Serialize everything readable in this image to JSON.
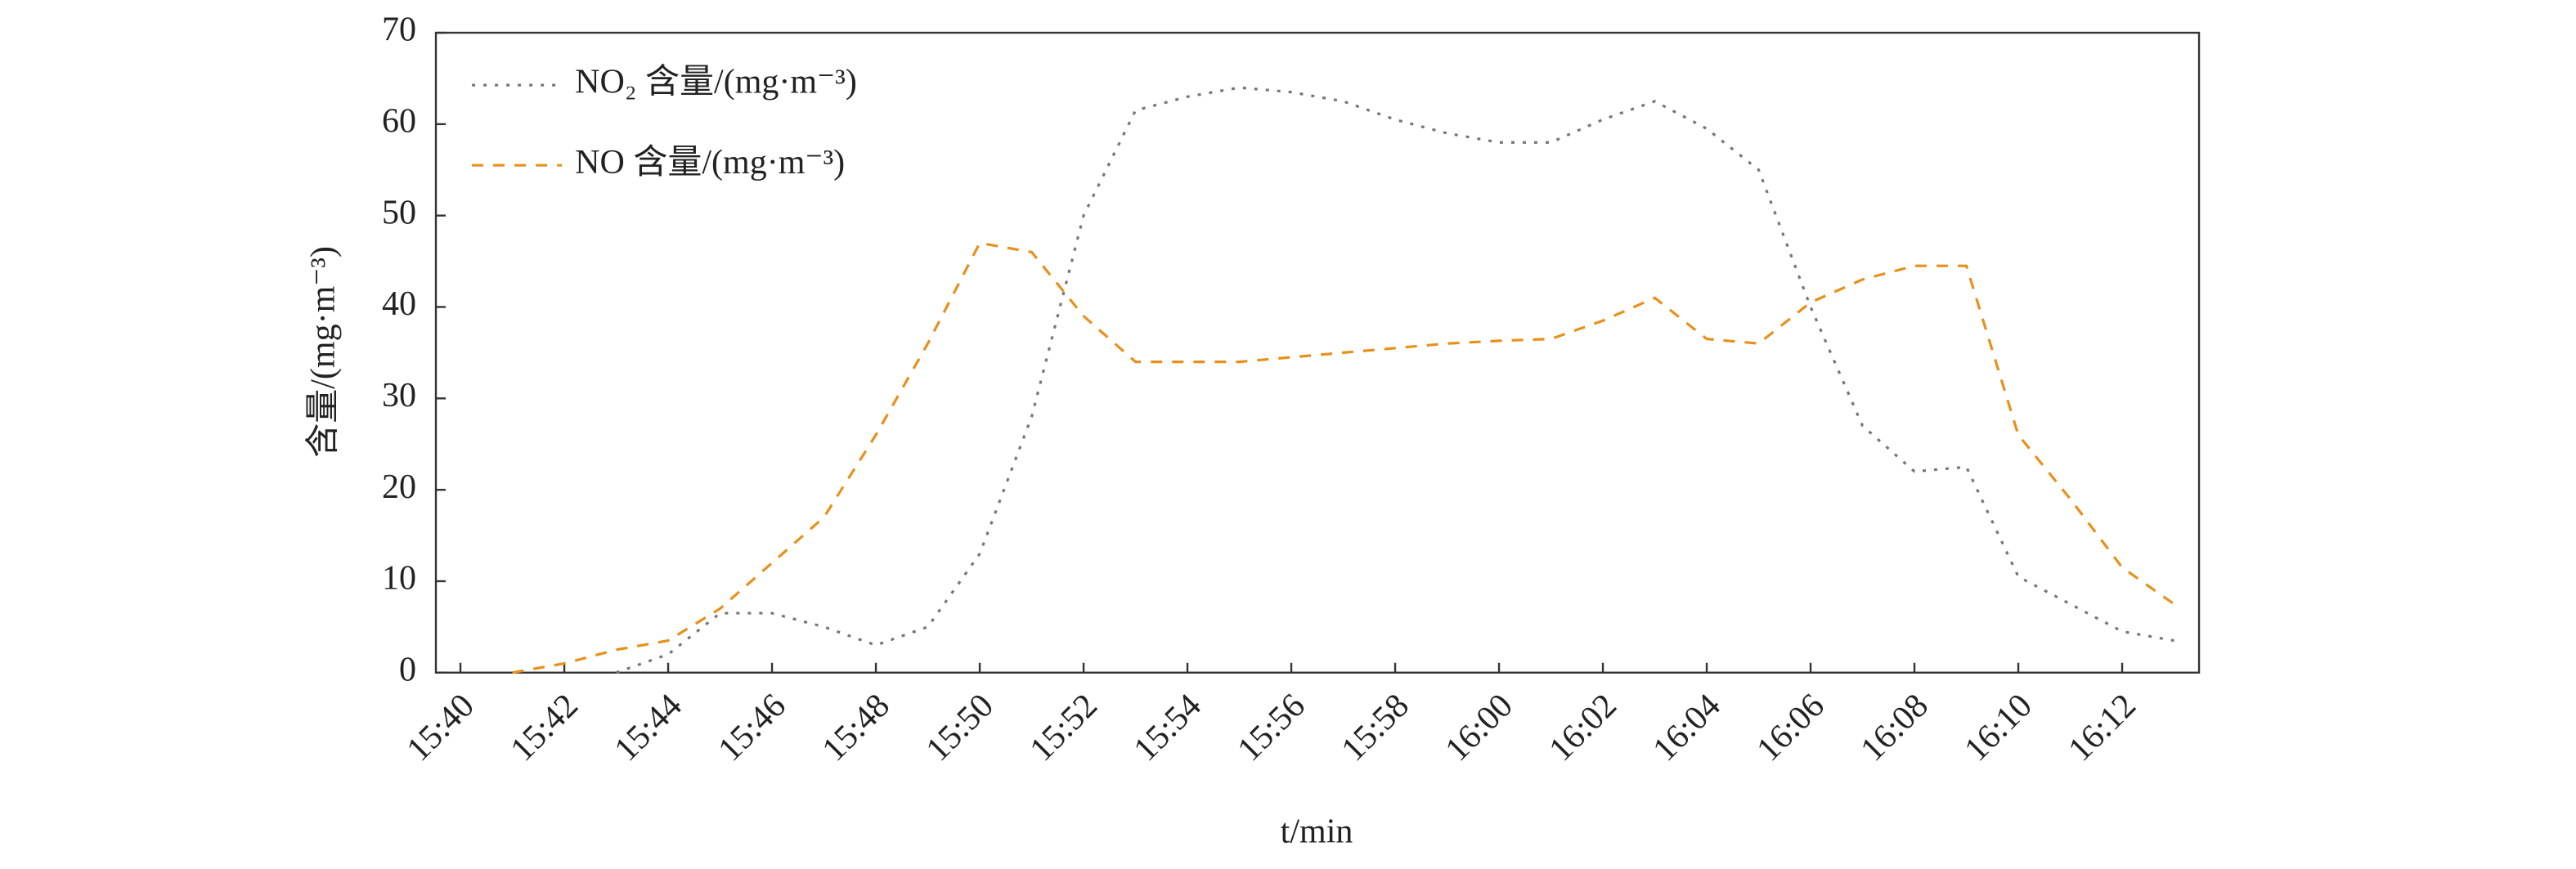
{
  "chart_data": {
    "type": "line",
    "y_label": "含量/(mg·m⁻³)",
    "x_label": "t/min",
    "categories": [
      "15:40",
      null,
      "15:42",
      null,
      "15:44",
      null,
      "15:46",
      null,
      "15:48",
      null,
      "15:50",
      null,
      "15:52",
      null,
      "15:54",
      null,
      "15:56",
      null,
      "15:58",
      null,
      "16:00",
      null,
      "16:02",
      null,
      "16:04",
      null,
      "16:06",
      null,
      "16:08",
      null,
      "16:10",
      null,
      "16:12",
      null
    ],
    "series": [
      {
        "name": "NO₂ 含量/(mg·m⁻³)",
        "color": "#777777",
        "dash": "dotted",
        "values": [
          null,
          null,
          null,
          0,
          2,
          6.5,
          6.5,
          5,
          3,
          5,
          13,
          28,
          50,
          61.5,
          63,
          64,
          63.5,
          62.5,
          60.5,
          59,
          58,
          58,
          60.5,
          62.5,
          59.5,
          55,
          40,
          27,
          22,
          22.5,
          10.5,
          7.5,
          4.5,
          3.5
        ]
      },
      {
        "name": "NO 含量/(mg·m⁻³)",
        "color": "#e8901a",
        "dash": "dashed",
        "values": [
          null,
          0,
          1,
          2.5,
          3.5,
          7,
          12,
          17,
          26,
          36,
          47,
          46,
          39,
          34,
          34,
          34,
          34.5,
          35,
          35.5,
          36,
          36.3,
          36.5,
          38.5,
          41,
          36.5,
          36,
          40.5,
          43,
          44.5,
          44.5,
          26,
          19,
          11.5,
          7.5
        ]
      }
    ],
    "ylim": [
      0,
      70
    ],
    "yticks": [
      0,
      10,
      20,
      30,
      40,
      50,
      60,
      70
    ],
    "legend": "upper left",
    "grid": false
  }
}
